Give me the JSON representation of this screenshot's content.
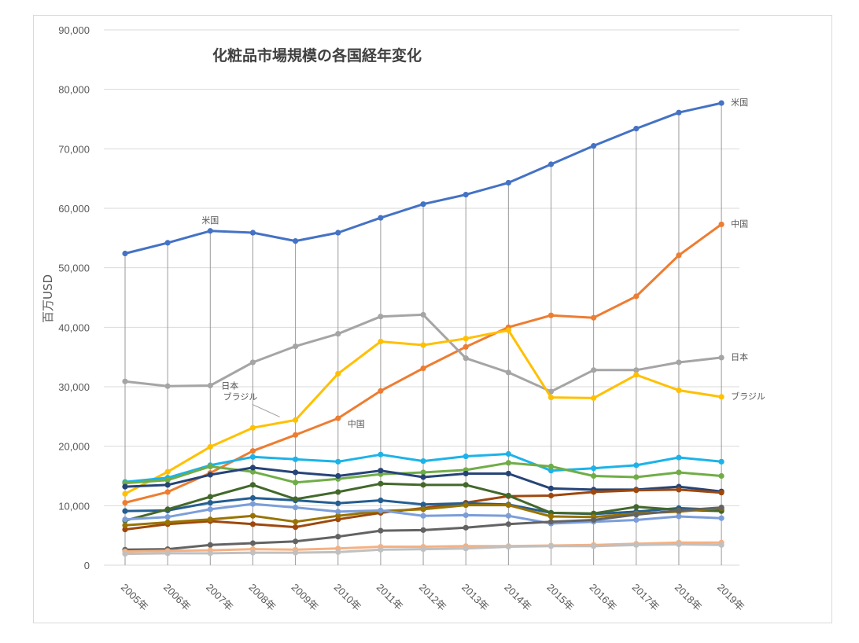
{
  "chart_data": {
    "type": "line",
    "title": "化粧品市場規模の各国経年変化",
    "xlabel": "",
    "ylabel": "百万USD",
    "ylim": [
      0,
      90000
    ],
    "yticks": [
      0,
      10000,
      20000,
      30000,
      40000,
      50000,
      60000,
      70000,
      80000,
      90000
    ],
    "ytick_labels": [
      "0",
      "10,000",
      "20,000",
      "30,000",
      "40,000",
      "50,000",
      "60,000",
      "70,000",
      "80,000",
      "90,000"
    ],
    "grid": "horizontal",
    "drop_lines": true,
    "categories": [
      "2005年",
      "2006年",
      "2007年",
      "2008年",
      "2009年",
      "2010年",
      "2011年",
      "2012年",
      "2013年",
      "2014年",
      "2015年",
      "2016年",
      "2017年",
      "2018年",
      "2019年"
    ],
    "series": [
      {
        "name": "米国",
        "color": "#4472c4",
        "values": [
          52400,
          54200,
          56200,
          55900,
          54500,
          55900,
          58400,
          60700,
          62300,
          64300,
          67400,
          70500,
          73400,
          76100,
          77700
        ]
      },
      {
        "name": "中国",
        "color": "#ed7d31",
        "values": [
          10500,
          12300,
          15500,
          19200,
          21900,
          24700,
          29300,
          33100,
          36700,
          40000,
          42000,
          41600,
          45200,
          52100,
          57300
        ]
      },
      {
        "name": "日本",
        "color": "#a5a5a5",
        "values": [
          30900,
          30100,
          30200,
          34100,
          36800,
          38900,
          41800,
          42100,
          34800,
          32400,
          29200,
          32800,
          32800,
          34100,
          34900
        ]
      },
      {
        "name": "ブラジル",
        "color": "#ffc000",
        "values": [
          12000,
          15700,
          19900,
          23100,
          24400,
          32200,
          37600,
          37000,
          38100,
          39500,
          28200,
          28100,
          32000,
          29400,
          28300
        ]
      },
      {
        "name": "",
        "color": "#1cb3e8",
        "values": [
          14000,
          14700,
          16800,
          18200,
          17800,
          17400,
          18600,
          17500,
          18300,
          18700,
          15900,
          16300,
          16800,
          18100,
          17400
        ]
      },
      {
        "name": "",
        "color": "#70ad47",
        "values": [
          13800,
          14300,
          16600,
          15700,
          13900,
          14500,
          15300,
          15600,
          16000,
          17200,
          16600,
          15000,
          14800,
          15600,
          15000
        ]
      },
      {
        "name": "",
        "color": "#264478",
        "values": [
          13200,
          13500,
          15200,
          16400,
          15600,
          15000,
          15900,
          14800,
          15400,
          15400,
          12900,
          12700,
          12700,
          13200,
          12400
        ]
      },
      {
        "name": "",
        "color": "#9e480e",
        "values": [
          6000,
          6900,
          7400,
          6900,
          6400,
          7700,
          8800,
          9600,
          10500,
          11600,
          11700,
          12300,
          12600,
          12700,
          12200
        ]
      },
      {
        "name": "",
        "color": "#255e91",
        "values": [
          9100,
          9200,
          10500,
          11300,
          10900,
          10400,
          10900,
          10200,
          10400,
          10200,
          8800,
          8600,
          9000,
          9600,
          9300
        ]
      },
      {
        "name": "",
        "color": "#43682b",
        "values": [
          7500,
          9400,
          11500,
          13500,
          11100,
          12300,
          13700,
          13500,
          13500,
          11700,
          8800,
          8700,
          9800,
          9300,
          9100
        ]
      },
      {
        "name": "",
        "color": "#997300",
        "values": [
          6700,
          7200,
          7700,
          8300,
          7300,
          8300,
          9100,
          9400,
          10100,
          10100,
          8200,
          8100,
          8700,
          9000,
          9600
        ]
      },
      {
        "name": "",
        "color": "#7b9ed9",
        "values": [
          7700,
          8100,
          9400,
          10300,
          9700,
          9000,
          9200,
          8300,
          8400,
          8300,
          7000,
          7300,
          7600,
          8200,
          7900
        ]
      },
      {
        "name": "",
        "color": "#636363",
        "values": [
          2600,
          2700,
          3400,
          3700,
          4000,
          4800,
          5800,
          5900,
          6300,
          6900,
          7300,
          7600,
          8500,
          9200,
          9700
        ]
      },
      {
        "name": "",
        "color": "#f4b183",
        "values": [
          2300,
          2400,
          2500,
          2700,
          2600,
          2800,
          3100,
          3100,
          3200,
          3200,
          3300,
          3400,
          3600,
          3800,
          3800
        ]
      },
      {
        "name": "",
        "color": "#c0c0c0",
        "values": [
          1900,
          2000,
          2000,
          2100,
          2100,
          2200,
          2600,
          2700,
          2800,
          3100,
          3200,
          3200,
          3400,
          3500,
          3400
        ]
      }
    ],
    "annotations": [
      {
        "text": "米国",
        "series": 0,
        "index": 2
      },
      {
        "text": "日本",
        "series": 2,
        "index": 2
      },
      {
        "text": "ブラジル",
        "series": 3,
        "index": 4
      },
      {
        "text": "中国",
        "series": 1,
        "index": 5
      },
      {
        "text": "米国",
        "series": 0,
        "index": 14
      },
      {
        "text": "中国",
        "series": 1,
        "index": 14
      },
      {
        "text": "日本",
        "series": 2,
        "index": 14
      },
      {
        "text": "ブラジル",
        "series": 3,
        "index": 14
      }
    ]
  }
}
